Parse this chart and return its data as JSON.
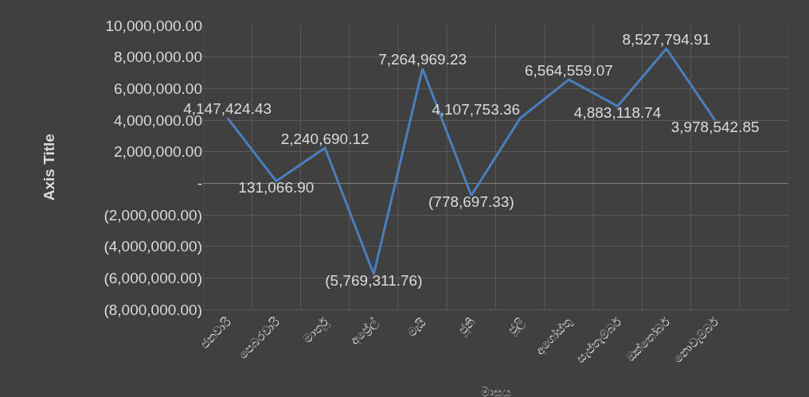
{
  "chart_data": {
    "type": "line",
    "xlabel": "මාසය",
    "ylabel": "Axis Title",
    "categories": [
      "ජනවාරි",
      "පෙබරවාරි",
      "මාර්තු",
      "අප්‍රේල්",
      "මැයි",
      "ජූනි",
      "ජූලි",
      "අගෝස්තු",
      "සැප්තැම්බර්",
      "ඔක්තෝබර්",
      "නොවැම්බර්",
      null
    ],
    "series": [
      {
        "color": "#4a7ebb",
        "values": [
          4147424.43,
          131066.9,
          2240690.12,
          -5769311.76,
          7264969.23,
          -778697.33,
          4107753.36,
          6564559.07,
          4883118.74,
          8527794.91,
          3978542.85,
          null
        ],
        "value_labels": [
          "4,147,424.43",
          "131,066.90",
          "2,240,690.12",
          "(5,769,311.76)",
          "7,264,969.23",
          "(778,697.33)",
          "4,107,753.36",
          "6,564,559.07",
          "4,883,118.74",
          "8,527,794.91",
          "3,978,542.85",
          null
        ]
      }
    ],
    "ylim": [
      -8000000,
      10000000
    ],
    "yticks": [
      {
        "value": -8000000,
        "label": "(8,000,000.00)"
      },
      {
        "value": -6000000,
        "label": "(6,000,000.00)"
      },
      {
        "value": -4000000,
        "label": "(4,000,000.00)"
      },
      {
        "value": -2000000,
        "label": "(2,000,000.00)"
      },
      {
        "value": 0,
        "label": "-"
      },
      {
        "value": 2000000,
        "label": "2,000,000.00"
      },
      {
        "value": 4000000,
        "label": "4,000,000.00"
      },
      {
        "value": 6000000,
        "label": "6,000,000.00"
      },
      {
        "value": 8000000,
        "label": "8,000,000.00"
      },
      {
        "value": 10000000,
        "label": "10,000,000.00"
      }
    ],
    "grid": true,
    "marker": "none",
    "line_style": "solid"
  }
}
